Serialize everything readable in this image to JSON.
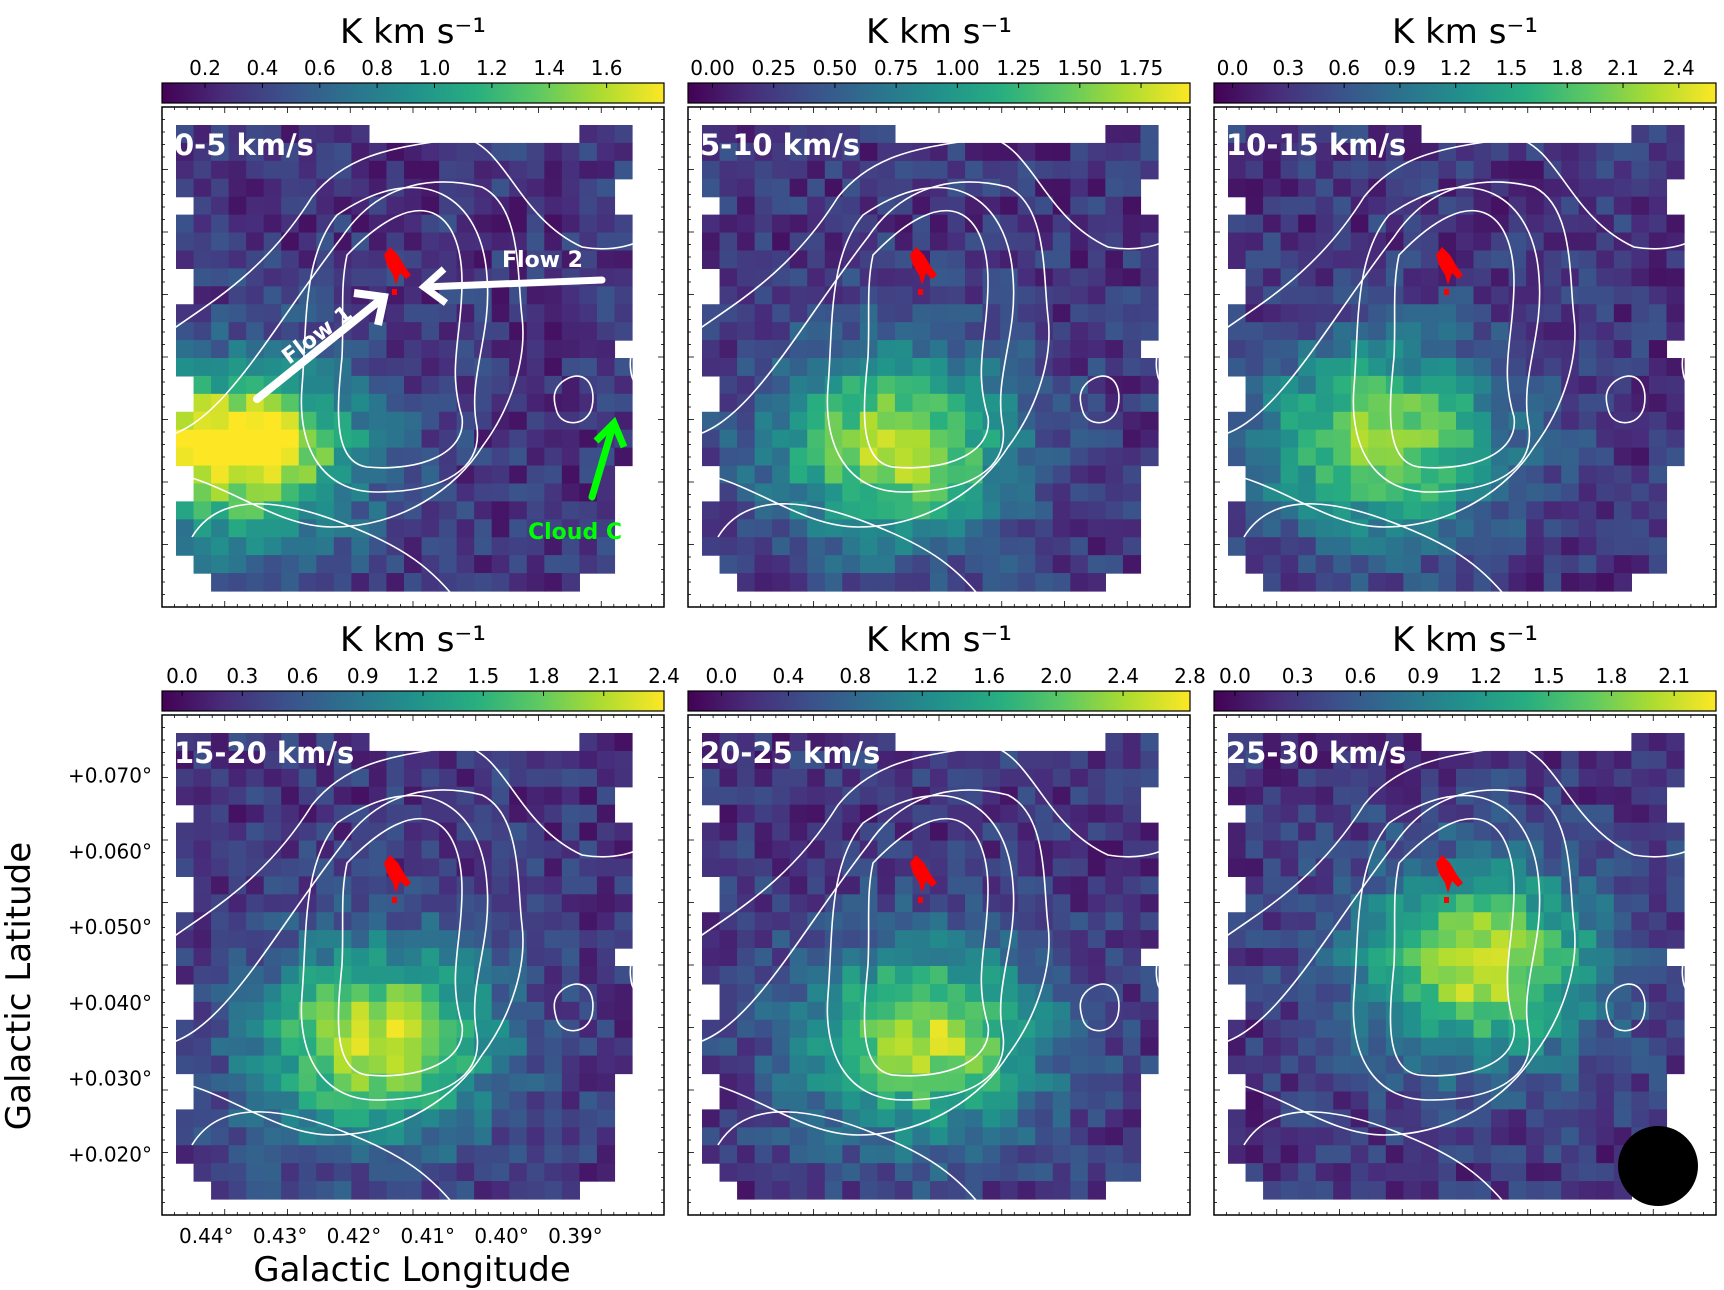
{
  "colormap": [
    "#440154",
    "#472d7b",
    "#3b528b",
    "#2c728e",
    "#21918c",
    "#28ae80",
    "#5ec962",
    "#addc30",
    "#fde725"
  ],
  "colors": {
    "contour": "#ffffff",
    "source": "#ff0000",
    "annotation_flow": "#ffffff",
    "annotation_cloud": "#00ff00",
    "beam": "#000000"
  },
  "chart_data": {
    "type": "heatmap",
    "description_axes": {
      "xlabel": "Galactic Longitude",
      "ylabel": "Galactic Latitude",
      "xticks": [
        "0.44°",
        "0.43°",
        "0.42°",
        "0.41°",
        "0.40°",
        "0.39°"
      ],
      "yticks": [
        "+0.070°",
        "+0.060°",
        "+0.050°",
        "+0.040°",
        "+0.030°",
        "+0.020°"
      ],
      "xlim": [
        0.446,
        0.378
      ],
      "ylim": [
        0.012,
        0.078
      ]
    },
    "panels": [
      {
        "velocity_label": "0-5 km/s",
        "colorbar_unit": "K km s⁻¹",
        "colorbar_ticks": [
          "0.2",
          "0.4",
          "0.6",
          "0.8",
          "1.0",
          "1.2",
          "1.4",
          "1.6"
        ],
        "colorbar_range": [
          0.05,
          1.8
        ],
        "peak": {
          "l": 0.435,
          "b": 0.032,
          "value": 1.6
        },
        "annotations": [
          {
            "text": "Flow 1",
            "color": "annotation_flow"
          },
          {
            "text": "Flow 2",
            "color": "annotation_flow"
          },
          {
            "text": "Cloud C",
            "color": "annotation_cloud"
          }
        ]
      },
      {
        "velocity_label": "5-10 km/s",
        "colorbar_unit": "K km s⁻¹",
        "colorbar_ticks": [
          "0.00",
          "0.25",
          "0.50",
          "0.75",
          "1.00",
          "1.25",
          "1.50",
          "1.75"
        ],
        "colorbar_range": [
          -0.1,
          1.95
        ],
        "peak": {
          "l": 0.418,
          "b": 0.033,
          "value": 1.8
        },
        "annotations": []
      },
      {
        "velocity_label": "10-15 km/s",
        "colorbar_unit": "K km s⁻¹",
        "colorbar_ticks": [
          "0.0",
          "0.3",
          "0.6",
          "0.9",
          "1.2",
          "1.5",
          "1.8",
          "2.1",
          "2.4"
        ],
        "colorbar_range": [
          -0.1,
          2.6
        ],
        "peak": {
          "l": 0.423,
          "b": 0.034,
          "value": 2.3
        },
        "annotations": []
      },
      {
        "velocity_label": "15-20 km/s",
        "colorbar_unit": "K km s⁻¹",
        "colorbar_ticks": [
          "0.0",
          "0.3",
          "0.6",
          "0.9",
          "1.2",
          "1.5",
          "1.8",
          "2.1",
          "2.4"
        ],
        "colorbar_range": [
          -0.1,
          2.4
        ],
        "peak": {
          "l": 0.417,
          "b": 0.035,
          "value": 2.3
        },
        "annotations": []
      },
      {
        "velocity_label": "20-25 km/s",
        "colorbar_unit": "K km s⁻¹",
        "colorbar_ticks": [
          "0.0",
          "0.4",
          "0.8",
          "1.2",
          "1.6",
          "2.0",
          "2.4",
          "2.8"
        ],
        "colorbar_range": [
          -0.2,
          2.8
        ],
        "peak": {
          "l": 0.414,
          "b": 0.035,
          "value": 2.6
        },
        "annotations": []
      },
      {
        "velocity_label": "25-30 km/s",
        "colorbar_unit": "K km s⁻¹",
        "colorbar_ticks": [
          "0.0",
          "0.3",
          "0.6",
          "0.9",
          "1.2",
          "1.5",
          "1.8",
          "2.1"
        ],
        "colorbar_range": [
          -0.1,
          2.3
        ],
        "peak": {
          "l": 0.41,
          "b": 0.045,
          "value": 2.2
        },
        "annotations": [
          {
            "text": "",
            "color": "beam"
          }
        ]
      }
    ]
  }
}
